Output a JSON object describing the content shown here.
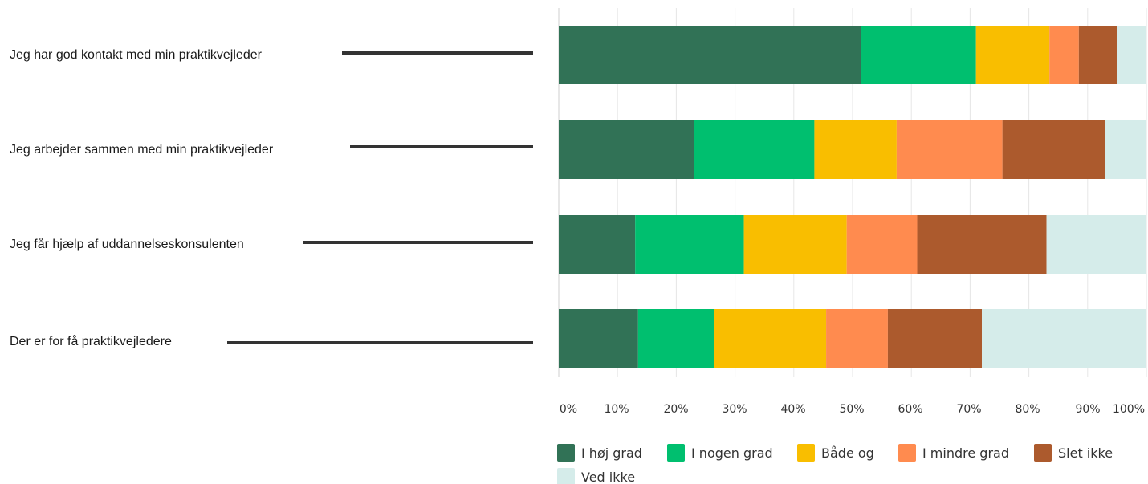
{
  "chart_data": {
    "type": "bar",
    "orientation": "horizontal",
    "stacked": true,
    "categories": [
      "Jeg har god kontakt med min praktikvejleder",
      "Jeg arbejder sammen med min praktikvejleder",
      "Jeg får hjælp af uddannelseskonsulenten",
      "Der er for få praktikvejledere"
    ],
    "series": [
      {
        "name": "I høj grad",
        "color": "#317256",
        "values": [
          51.5,
          23.0,
          13.0,
          13.5
        ]
      },
      {
        "name": "I nogen grad",
        "color": "#00bf6f",
        "values": [
          19.5,
          20.5,
          18.5,
          13.0
        ]
      },
      {
        "name": "Både og",
        "color": "#f9be00",
        "values": [
          12.5,
          14.0,
          17.5,
          19.0
        ]
      },
      {
        "name": "I mindre grad",
        "color": "#ff8b4f",
        "values": [
          5.0,
          18.0,
          12.0,
          10.5
        ]
      },
      {
        "name": "Slet ikke",
        "color": "#ac5a2d",
        "values": [
          6.5,
          17.5,
          22.0,
          16.0
        ]
      },
      {
        "name": "Ved ikke",
        "color": "#d5ecea",
        "values": [
          5.0,
          7.0,
          17.0,
          28.0
        ]
      }
    ],
    "x_ticks": [
      "0%",
      "10%",
      "20%",
      "30%",
      "40%",
      "50%",
      "60%",
      "70%",
      "80%",
      "90%",
      "100%"
    ],
    "xlim": [
      0,
      100
    ],
    "grid": true,
    "legend_position": "bottom"
  }
}
